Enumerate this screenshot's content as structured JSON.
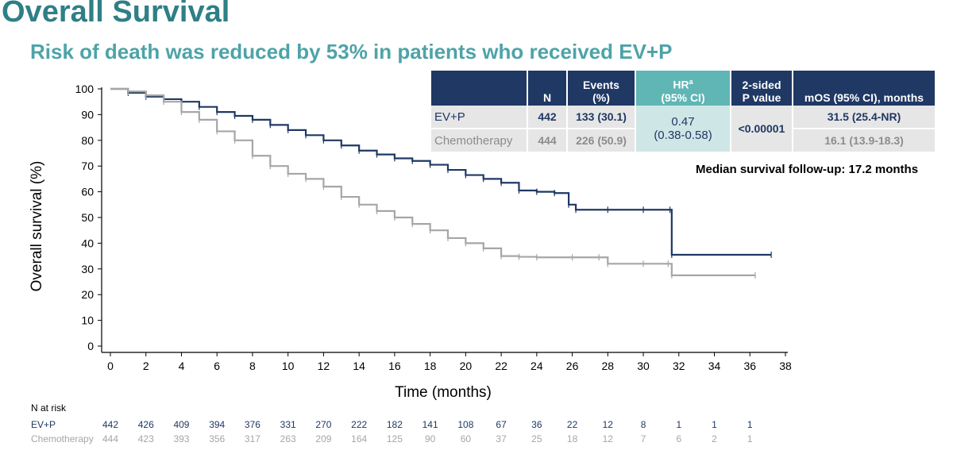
{
  "slide": {
    "title": "Overall Survival",
    "subtitle": "Risk of death was reduced by 53% in patients who received EV+P"
  },
  "table": {
    "headers": {
      "arm": "",
      "n": "N",
      "events_line1": "Events",
      "events_line2": "(%)",
      "hr_line1": "HR",
      "hr_sup": "a",
      "hr_line2": "(95% CI)",
      "p_line1": "2-sided",
      "p_line2": "P value",
      "mos": "mOS (95% CI), months"
    },
    "rows": [
      {
        "arm": "EV+P",
        "n": "442",
        "events": "133 (30.1)",
        "mos": "31.5 (25.4-NR)"
      },
      {
        "arm": "Chemotherapy",
        "n": "444",
        "events": "226 (50.9)",
        "mos": "16.1 (13.9-18.3)"
      }
    ],
    "hr_value": "0.47",
    "hr_ci": "(0.38-0.58)",
    "p_value": "<0.00001"
  },
  "followup_note": "Median survival follow-up: 17.2 months",
  "chart_data": {
    "type": "line",
    "title": "",
    "xlabel": "Time (months)",
    "ylabel": "Overall survival (%)",
    "xlim": [
      0,
      38
    ],
    "ylim": [
      0,
      100
    ],
    "x_ticks": [
      0,
      2,
      4,
      6,
      8,
      10,
      12,
      14,
      16,
      18,
      20,
      22,
      24,
      26,
      28,
      30,
      32,
      34,
      36,
      38
    ],
    "y_ticks": [
      0,
      10,
      20,
      30,
      40,
      50,
      60,
      70,
      80,
      90,
      100
    ],
    "series": [
      {
        "name": "EV+P",
        "color": "#1f3864",
        "step": true,
        "points": [
          [
            0,
            100
          ],
          [
            1,
            98.5
          ],
          [
            2,
            97
          ],
          [
            3,
            96
          ],
          [
            4,
            95
          ],
          [
            5,
            93
          ],
          [
            6,
            91
          ],
          [
            7,
            89.5
          ],
          [
            8,
            88
          ],
          [
            9,
            86
          ],
          [
            10,
            84
          ],
          [
            11,
            82
          ],
          [
            12,
            80
          ],
          [
            13,
            78
          ],
          [
            14,
            76
          ],
          [
            15,
            74.5
          ],
          [
            16,
            73
          ],
          [
            17,
            72
          ],
          [
            18,
            70.5
          ],
          [
            19,
            68.5
          ],
          [
            20,
            66.5
          ],
          [
            21,
            65
          ],
          [
            22,
            63.5
          ],
          [
            23,
            60.5
          ],
          [
            24,
            60
          ],
          [
            25,
            59.5
          ],
          [
            25.8,
            55
          ],
          [
            26.2,
            53
          ],
          [
            28,
            53
          ],
          [
            30,
            53
          ],
          [
            31.5,
            53
          ],
          [
            31.6,
            35.5
          ],
          [
            37.2,
            35.5
          ]
        ]
      },
      {
        "name": "Chemotherapy",
        "color": "#a6a6a6",
        "step": true,
        "points": [
          [
            0,
            100
          ],
          [
            1,
            99
          ],
          [
            2,
            97.5
          ],
          [
            3,
            95
          ],
          [
            4,
            91
          ],
          [
            5,
            88
          ],
          [
            6,
            83.5
          ],
          [
            7,
            80
          ],
          [
            8,
            74
          ],
          [
            9,
            70
          ],
          [
            10,
            67
          ],
          [
            11,
            65
          ],
          [
            12,
            62
          ],
          [
            13,
            58
          ],
          [
            14,
            55
          ],
          [
            15,
            52.5
          ],
          [
            16,
            50
          ],
          [
            17,
            47.5
          ],
          [
            18,
            45
          ],
          [
            19,
            42
          ],
          [
            20,
            40
          ],
          [
            21,
            38
          ],
          [
            22,
            35
          ],
          [
            23,
            34.7
          ],
          [
            24,
            34.5
          ],
          [
            26,
            34.5
          ],
          [
            27.5,
            34.5
          ],
          [
            28,
            32
          ],
          [
            30,
            32
          ],
          [
            31.4,
            32
          ],
          [
            31.6,
            27.5
          ],
          [
            36.3,
            27.5
          ]
        ]
      }
    ],
    "risk_table": {
      "title": "N at risk",
      "times": [
        0,
        2,
        4,
        6,
        8,
        10,
        12,
        14,
        16,
        18,
        20,
        22,
        24,
        26,
        28,
        30,
        32,
        34,
        36
      ],
      "rows": [
        {
          "label": "EV+P",
          "color": "#1f3864",
          "values": [
            442,
            426,
            409,
            394,
            376,
            331,
            270,
            222,
            182,
            141,
            108,
            67,
            36,
            22,
            12,
            8,
            1,
            1,
            1
          ]
        },
        {
          "label": "Chemotherapy",
          "color": "#a6a6a6",
          "values": [
            444,
            423,
            393,
            356,
            317,
            263,
            209,
            164,
            125,
            90,
            60,
            37,
            25,
            18,
            12,
            7,
            6,
            2,
            1
          ]
        }
      ]
    }
  }
}
